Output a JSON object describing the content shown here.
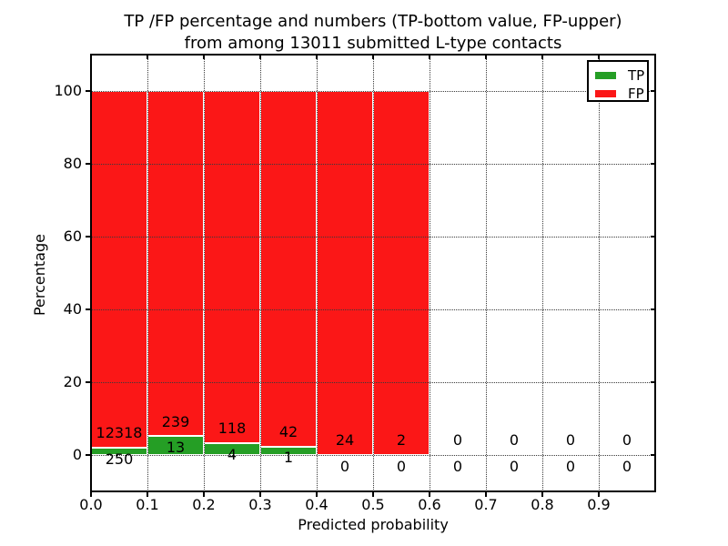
{
  "chart_data": {
    "type": "bar",
    "stacked": true,
    "normalized_to_percent": true,
    "title_line1": "TP /FP percentage and numbers (TP-bottom value, FP-upper)",
    "title_line2": "from among 13011 submitted L-type contacts",
    "xlabel": "Predicted probability",
    "ylabel": "Percentage",
    "total_submitted": 13011,
    "bin_start": 0.0,
    "bin_width": 0.1,
    "x_tick_labels": [
      "0.0",
      "0.1",
      "0.2",
      "0.3",
      "0.4",
      "0.5",
      "0.6",
      "0.7",
      "0.8",
      "0.9"
    ],
    "y_ticks": [
      0,
      20,
      40,
      60,
      80,
      100
    ],
    "xlim": [
      0.0,
      1.0
    ],
    "ylim": [
      -10,
      110
    ],
    "grid": "dotted",
    "legend_position": "upper right",
    "series": [
      {
        "name": "TP",
        "color": "#259e25",
        "counts": [
          250,
          13,
          4,
          1,
          0,
          0,
          0,
          0,
          0,
          0
        ]
      },
      {
        "name": "FP",
        "color": "#fb1717",
        "counts": [
          12318,
          239,
          118,
          42,
          24,
          2,
          0,
          0,
          0,
          0
        ]
      }
    ],
    "label_note": "TP count shown below axis-0 area, FP count shown above the TP bar top"
  }
}
